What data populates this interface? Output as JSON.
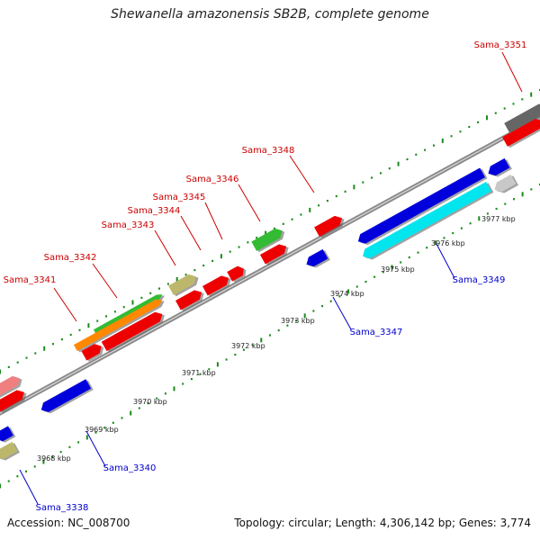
{
  "title": "Shewanella amazonensis SB2B, complete genome",
  "footer": {
    "accession": "Accession: NC_008700",
    "summary": "Topology: circular; Length: 4,306,142 bp; Genes: 3,774"
  },
  "colors": {
    "backbone": "#8a8a8a",
    "tick_dot": "#1a8a1a",
    "forward_label": "#cc0000",
    "reverse_label": "#0000cc",
    "cog_red": "#ee0000",
    "cog_blue": "#0000dd",
    "cog_green": "#33bb33",
    "cog_orange": "#ff8800",
    "cog_khaki": "#bdb76b",
    "cog_cyan": "#00e5ee",
    "cog_gray": "#666666",
    "cog_lightgray": "#c8c8c8",
    "cog_pink": "#f08080"
  },
  "kbp_labels": [
    "3968 kbp",
    "3969 kbp",
    "3970 kbp",
    "3971 kbp",
    "3972 kbp",
    "3973 kbp",
    "3974 kbp",
    "3975 kbp",
    "3976 kbp",
    "3977 kbp"
  ],
  "forward_labels": [
    "Sama_3341",
    "Sama_3342",
    "Sama_3343",
    "Sama_3344",
    "Sama_3345",
    "Sama_3346",
    "Sama_3348",
    "Sama_3351"
  ],
  "reverse_labels": [
    "Sama_3338",
    "Sama_3340",
    "Sama_3347",
    "Sama_3349"
  ]
}
